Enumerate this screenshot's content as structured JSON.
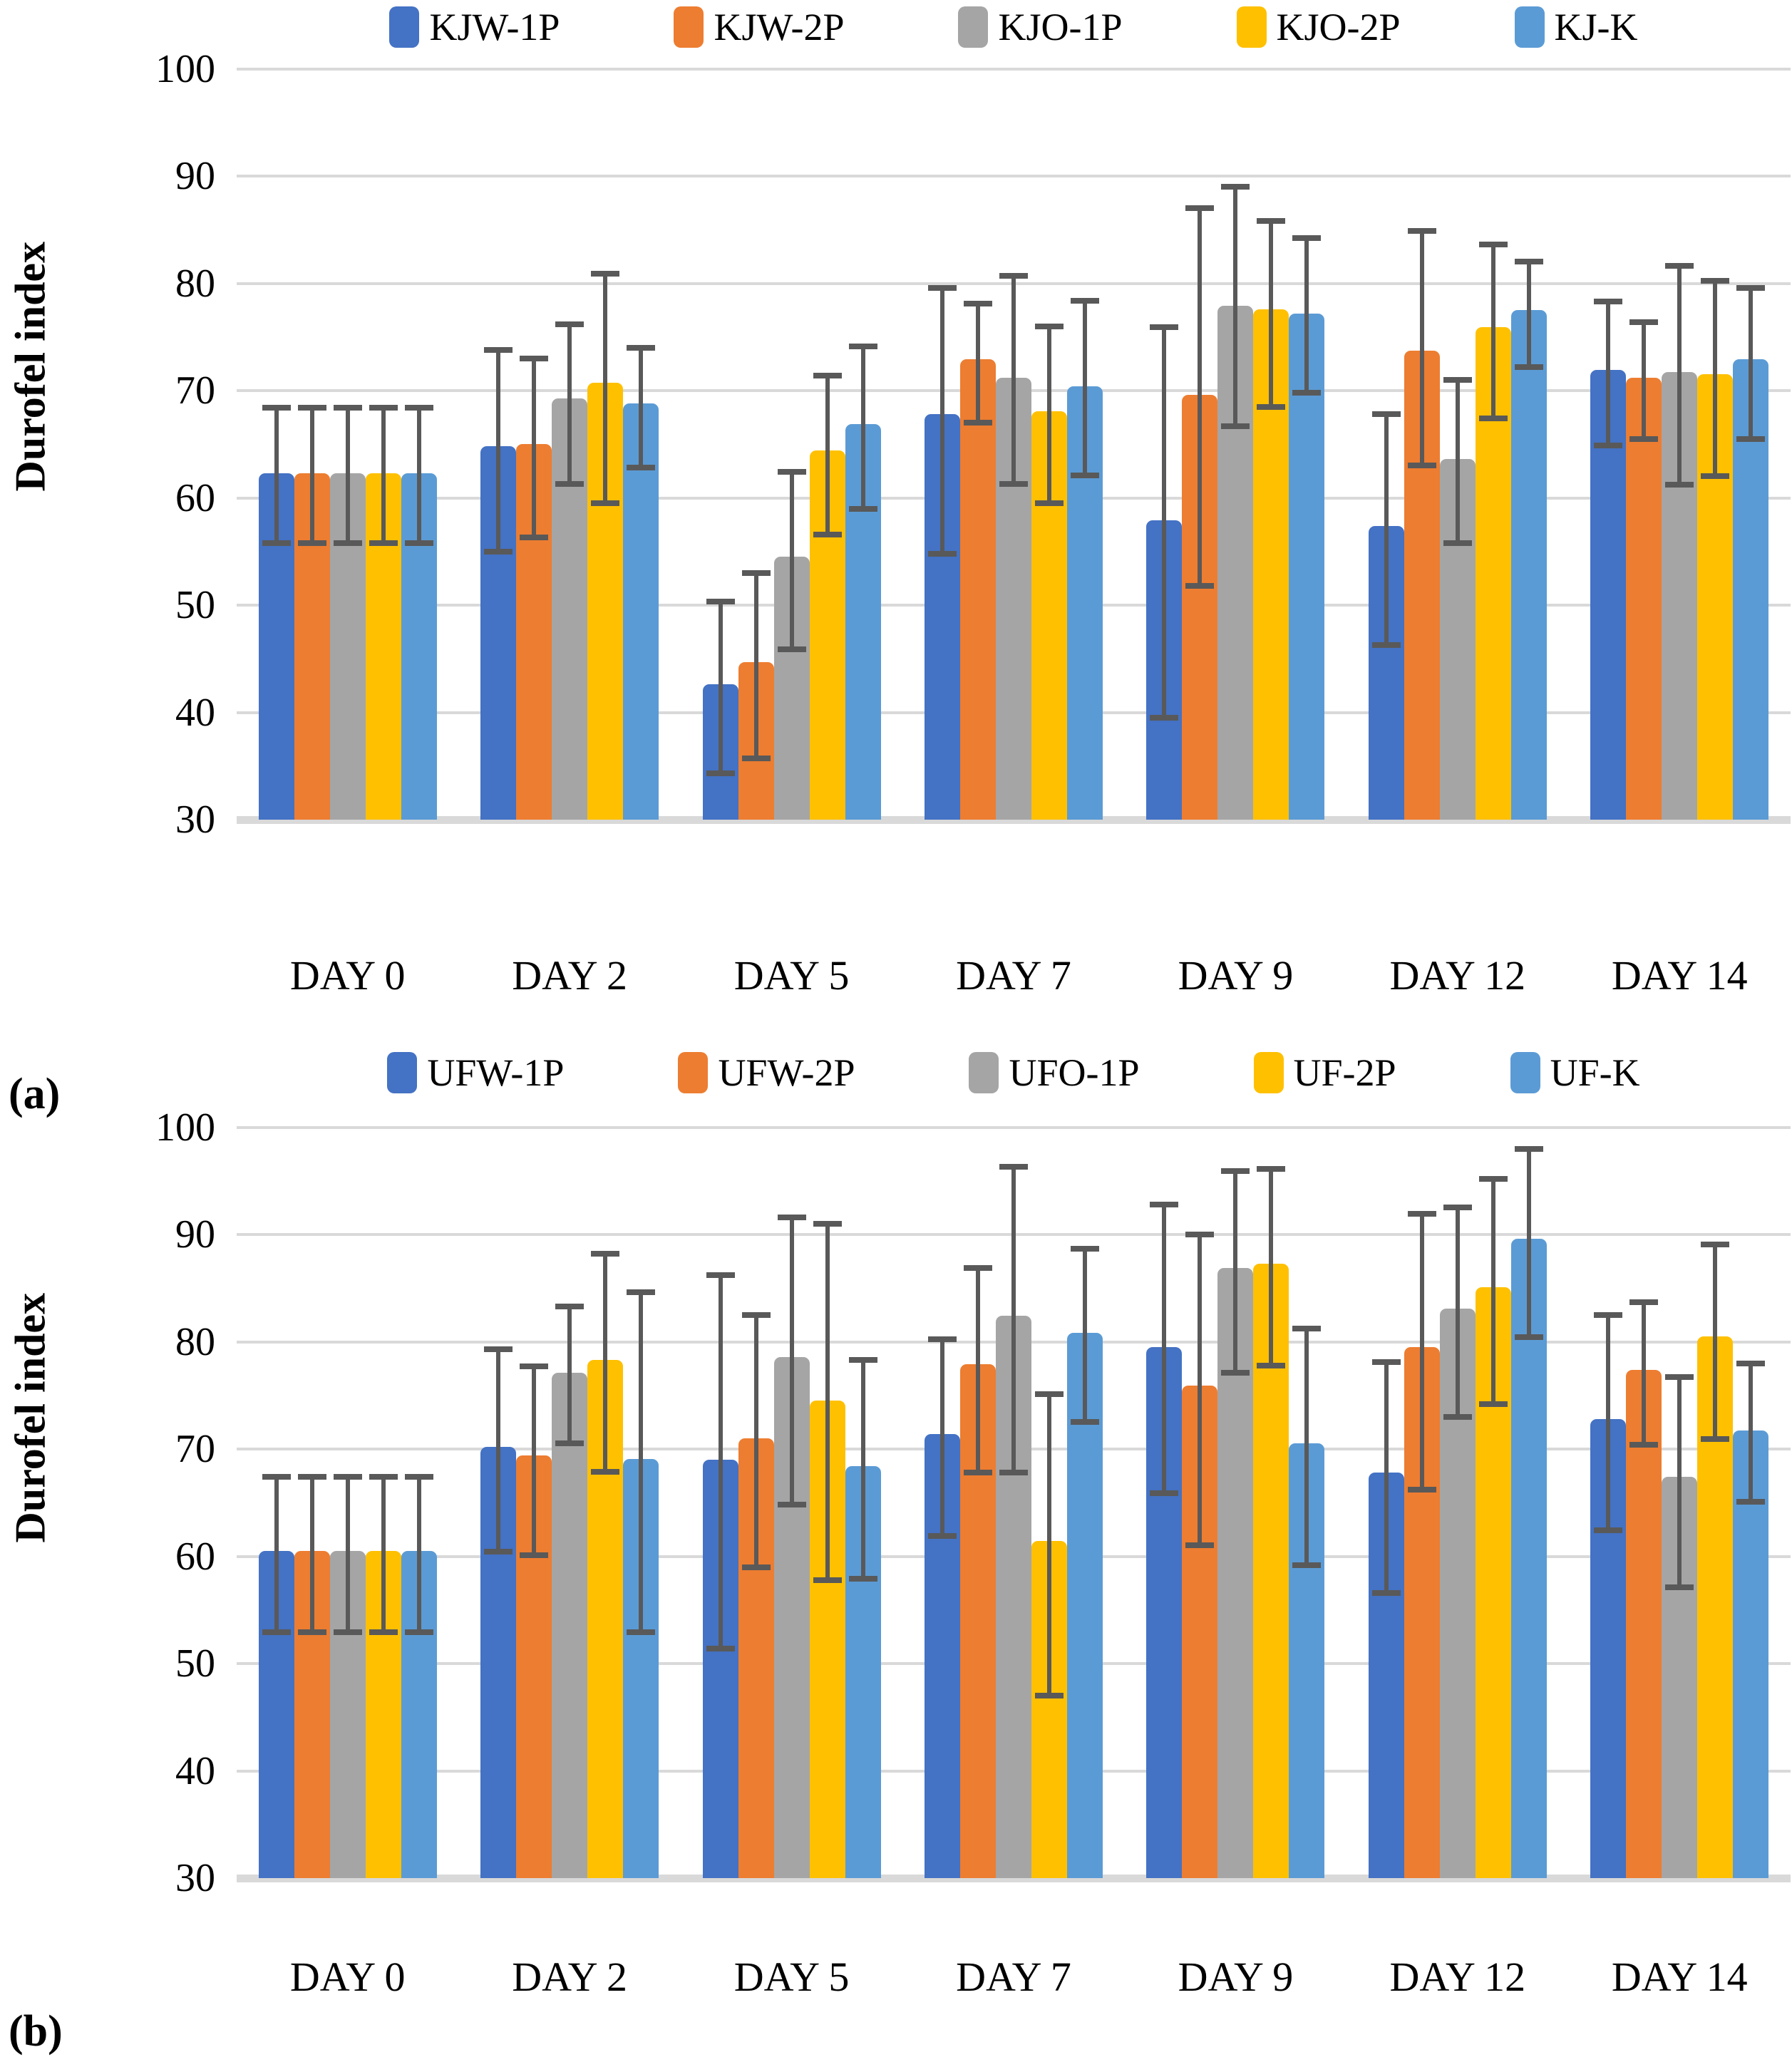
{
  "figure": {
    "background": "#ffffff",
    "text_color": "#000000",
    "gridline_color": "#D9D9D9",
    "error_bar_color": "#595959",
    "series_colors": [
      "#4472C4",
      "#ED7D31",
      "#A5A5A5",
      "#FFC000",
      "#5B9BD5"
    ]
  },
  "chart_data": [
    {
      "type": "bar",
      "panel_label": "(a)",
      "ylabel": "Durofel index",
      "xlabel": "",
      "grid": true,
      "legend_position": "top",
      "ylim": [
        30,
        100
      ],
      "yticks": [
        100,
        90,
        80,
        70,
        60,
        50,
        40,
        30
      ],
      "categories": [
        "DAY 0",
        "DAY 2",
        "DAY 5",
        "DAY 7",
        "DAY 9",
        "DAY 12",
        "DAY 14"
      ],
      "series": [
        {
          "name": "KJW-1P",
          "color": "#4472C4",
          "values": [
            62.3,
            64.8,
            42.6,
            67.8,
            57.9,
            57.4,
            71.9
          ],
          "err_low": [
            55.8,
            55.0,
            34.3,
            54.8,
            39.5,
            46.3,
            64.9
          ],
          "err_high": [
            68.4,
            73.8,
            50.3,
            79.6,
            75.9,
            67.8,
            78.3
          ]
        },
        {
          "name": "KJW-2P",
          "color": "#ED7D31",
          "values": [
            62.3,
            65.0,
            44.7,
            72.9,
            69.6,
            73.7,
            71.2
          ],
          "err_low": [
            55.8,
            56.3,
            35.7,
            67.0,
            51.8,
            63.0,
            65.5
          ],
          "err_high": [
            68.4,
            73.0,
            53.0,
            78.1,
            87.0,
            84.9,
            76.4
          ]
        },
        {
          "name": "KJO-1P",
          "color": "#A5A5A5",
          "values": [
            62.3,
            69.3,
            54.5,
            71.2,
            77.9,
            63.6,
            71.7
          ],
          "err_low": [
            55.8,
            61.3,
            45.9,
            61.3,
            66.7,
            55.8,
            61.2
          ],
          "err_high": [
            68.4,
            76.2,
            62.4,
            80.7,
            89.0,
            71.0,
            81.6
          ]
        },
        {
          "name": "KJO-2P",
          "color": "#FFC000",
          "values": [
            62.3,
            70.7,
            64.4,
            68.1,
            77.6,
            75.9,
            71.5
          ],
          "err_low": [
            55.8,
            59.5,
            56.6,
            59.5,
            68.5,
            67.4,
            62.0
          ],
          "err_high": [
            68.4,
            80.9,
            71.4,
            76.0,
            85.8,
            83.6,
            80.2
          ]
        },
        {
          "name": "KJ-K",
          "color": "#5B9BD5",
          "values": [
            62.3,
            68.8,
            66.9,
            70.4,
            77.2,
            77.5,
            72.9
          ],
          "err_low": [
            55.8,
            62.8,
            59.0,
            62.1,
            69.8,
            72.2,
            65.5
          ],
          "err_high": [
            68.4,
            74.0,
            74.1,
            78.4,
            84.2,
            82.0,
            79.6
          ]
        }
      ]
    },
    {
      "type": "bar",
      "panel_label": "(b)",
      "ylabel": "Durofel index",
      "xlabel": "",
      "grid": true,
      "legend_position": "top",
      "ylim": [
        30,
        100
      ],
      "yticks": [
        100,
        90,
        80,
        70,
        60,
        50,
        40,
        30
      ],
      "categories": [
        "DAY 0",
        "DAY 2",
        "DAY 5",
        "DAY 7",
        "DAY 9",
        "DAY 12",
        "DAY 14"
      ],
      "series": [
        {
          "name": "UFW-1P",
          "color": "#4472C4",
          "values": [
            60.5,
            70.2,
            69.0,
            71.4,
            79.5,
            67.8,
            72.8
          ],
          "err_low": [
            52.9,
            60.4,
            51.4,
            61.9,
            65.9,
            56.6,
            62.4
          ],
          "err_high": [
            67.4,
            79.3,
            86.2,
            80.2,
            92.8,
            78.1,
            82.5
          ]
        },
        {
          "name": "UFW-2P",
          "color": "#ED7D31",
          "values": [
            60.5,
            69.4,
            71.0,
            77.9,
            75.9,
            79.5,
            77.4
          ],
          "err_low": [
            52.9,
            60.1,
            59.0,
            67.8,
            61.0,
            66.2,
            70.4
          ],
          "err_high": [
            67.4,
            77.7,
            82.5,
            86.9,
            90.0,
            91.9,
            83.7
          ]
        },
        {
          "name": "UFO-1P",
          "color": "#A5A5A5",
          "values": [
            60.5,
            77.1,
            78.6,
            82.4,
            86.9,
            83.1,
            67.4
          ],
          "err_low": [
            52.9,
            70.5,
            64.8,
            67.8,
            77.1,
            73.0,
            57.1
          ],
          "err_high": [
            67.4,
            83.3,
            91.6,
            96.3,
            95.9,
            92.5,
            76.7
          ]
        },
        {
          "name": "UF-2P",
          "color": "#FFC000",
          "values": [
            60.5,
            78.3,
            74.5,
            61.4,
            87.3,
            85.1,
            80.5
          ],
          "err_low": [
            52.9,
            67.9,
            57.8,
            47.0,
            77.8,
            74.2,
            70.9
          ],
          "err_high": [
            67.4,
            88.2,
            91.0,
            75.1,
            96.1,
            95.2,
            89.1
          ]
        },
        {
          "name": "UF-K",
          "color": "#5B9BD5",
          "values": [
            60.5,
            69.1,
            68.4,
            80.8,
            70.5,
            89.6,
            71.7
          ],
          "err_low": [
            52.9,
            52.9,
            57.9,
            72.5,
            59.2,
            80.4,
            65.1
          ],
          "err_high": [
            67.4,
            84.6,
            78.3,
            88.7,
            81.2,
            98.0,
            78.0
          ]
        }
      ]
    }
  ]
}
